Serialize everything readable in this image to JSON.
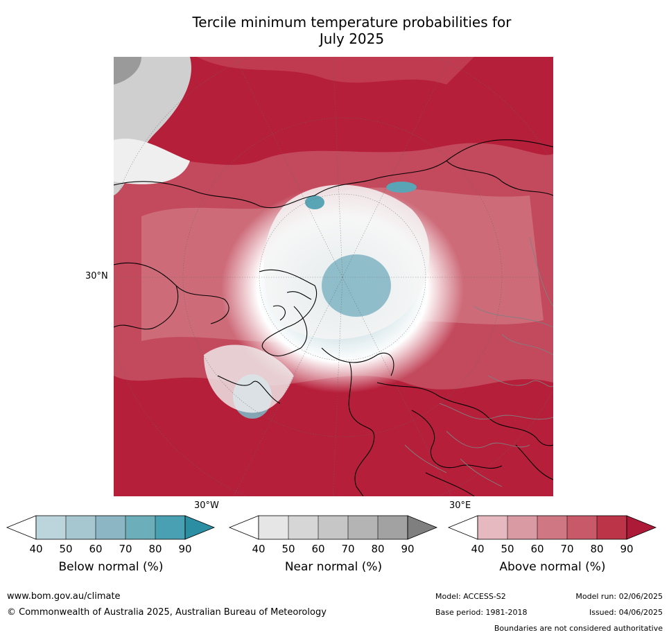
{
  "title_line1": "Tercile minimum temperature probabilities for",
  "title_line2": "July 2025",
  "axis_labels": {
    "lat_30n": "30°N",
    "lon_30w": "30°W",
    "lon_30e": "30°E"
  },
  "colorbars": [
    {
      "id": "below",
      "label": "Below normal (%)",
      "ticks": [
        "40",
        "50",
        "60",
        "70",
        "80",
        "90"
      ],
      "colors": [
        "#ffffff",
        "#bcd5dc",
        "#a6c7cf",
        "#8cb6c3",
        "#6daebb",
        "#48a0b2",
        "#2b8ea3"
      ]
    },
    {
      "id": "near",
      "label": "Near normal (%)",
      "ticks": [
        "40",
        "50",
        "60",
        "70",
        "80",
        "90"
      ],
      "colors": [
        "#ffffff",
        "#e6e6e6",
        "#d6d6d6",
        "#c6c6c6",
        "#b4b4b4",
        "#a2a2a2",
        "#7f7f7f"
      ]
    },
    {
      "id": "above",
      "label": "Above normal (%)",
      "ticks": [
        "40",
        "50",
        "60",
        "70",
        "80",
        "90"
      ],
      "colors": [
        "#ffffff",
        "#e5b9bf",
        "#d99aa3",
        "#cf7883",
        "#c85968",
        "#bc3448",
        "#ad1a37"
      ]
    }
  ],
  "footer": {
    "website": "www.bom.gov.au/climate",
    "copyright": "© Commonwealth of Australia 2025, Australian Bureau of Meteorology",
    "model": "Model: ACCESS-S2",
    "base_period": "Base period: 1981-2018",
    "model_run": "Model run: 02/06/2025",
    "issued": "Issued: 04/06/2025",
    "disclaimer": "Boundaries are not considered authoritative"
  }
}
